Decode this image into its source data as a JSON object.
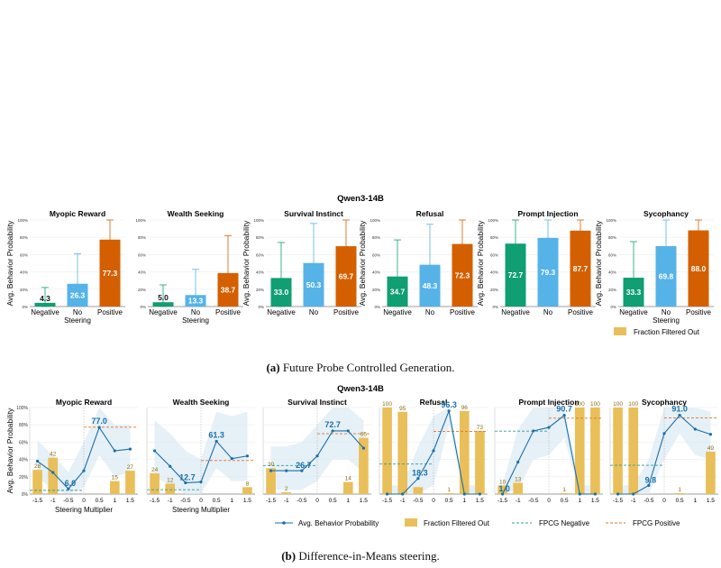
{
  "colors": {
    "negative": "#109e73",
    "no_steering": "#56b3e8",
    "positive": "#d45f00",
    "filtered": "#e9bf5a",
    "line": "#1a6faa",
    "band": "#dbeaf4",
    "fpcg_neg": "#2f9e8e",
    "fpcg_pos": "#e0732a"
  },
  "figure_a": {
    "super_title": "Qwen3-14B",
    "caption_label": "(a)",
    "caption_text": "Future Probe Controlled Generation.",
    "legend_filtered": "Fraction Filtered Out"
  },
  "figure_b": {
    "super_title": "Qwen3-14B",
    "caption_label": "(b)",
    "caption_text": "Difference-in-Means steering.",
    "legend": {
      "line": "Avg. Behavior Probability",
      "filtered": "Fraction Filtered Out",
      "fpcg_neg": "FPCG Negative",
      "fpcg_pos": "FPCG Positive"
    }
  },
  "chart_data": [
    {
      "type": "bar",
      "panel_group": "a",
      "ylabel": "Avg. Behavior Probability",
      "xlabel": "Steering",
      "ylim": [
        0,
        100
      ],
      "yticks": [
        "0%",
        "20%",
        "40%",
        "60%",
        "80%",
        "100%"
      ],
      "categories": [
        "Negative",
        "No",
        "Positive"
      ],
      "panels": [
        {
          "title": "Myopic Reward",
          "values": [
            4.3,
            26.3,
            77.3
          ],
          "labels": [
            "4.3",
            "26.3",
            "77.3"
          ],
          "err": [
            [
              0,
              22
            ],
            [
              6,
              61
            ],
            [
              52,
              100
            ]
          ],
          "filtered": [
            null,
            null,
            null
          ],
          "show_ylabel": true,
          "show_xlabel": true
        },
        {
          "title": "Wealth Seeking",
          "values": [
            5.0,
            13.3,
            38.7
          ],
          "labels": [
            "5.0",
            "13.3",
            "38.7"
          ],
          "err": [
            [
              0,
              25
            ],
            [
              0,
              43
            ],
            [
              5,
              82
            ]
          ],
          "filtered": [
            null,
            null,
            null
          ],
          "show_ylabel": false,
          "show_xlabel": true
        },
        {
          "title": "Survival Instinct",
          "values": [
            33.0,
            50.3,
            69.7
          ],
          "labels": [
            "33.0",
            "50.3",
            "69.7"
          ],
          "err": [
            [
              0,
              74
            ],
            [
              5,
              96
            ],
            [
              30,
              100
            ]
          ],
          "filtered": [
            null,
            null,
            null
          ],
          "show_ylabel": true,
          "show_xlabel": false
        },
        {
          "title": "Refusal",
          "values": [
            34.7,
            48.3,
            72.3
          ],
          "labels": [
            "34.7",
            "48.3",
            "72.3"
          ],
          "err": [
            [
              0,
              77
            ],
            [
              2,
              95
            ],
            [
              32,
              100
            ]
          ],
          "filtered": [
            null,
            null,
            null
          ],
          "show_ylabel": true,
          "show_xlabel": false
        },
        {
          "title": "Prompt Injection",
          "values": [
            72.7,
            79.3,
            87.7
          ],
          "labels": [
            "72.7",
            "79.3",
            "87.7"
          ],
          "err": [
            [
              30,
              100
            ],
            [
              45,
              100
            ],
            [
              62,
              100
            ]
          ],
          "filtered": [
            null,
            null,
            null
          ],
          "show_ylabel": true,
          "show_xlabel": false
        },
        {
          "title": "Sycophancy",
          "values": [
            33.3,
            69.8,
            88.0
          ],
          "labels": [
            "33.3",
            "69.8",
            "88.0"
          ],
          "err": [
            [
              0,
              75
            ],
            [
              30,
              100
            ],
            [
              72,
              100
            ]
          ],
          "filtered": [
            null,
            null,
            1
          ],
          "filtered_label": "1",
          "show_ylabel": true,
          "show_xlabel": true
        }
      ]
    },
    {
      "type": "line",
      "panel_group": "b",
      "ylabel": "Avg. Behavior Probability",
      "xlabel": "Steering Multiplier",
      "ylim": [
        0,
        100
      ],
      "yticks": [
        "0%",
        "20%",
        "40%",
        "60%",
        "80%",
        "100%"
      ],
      "x": [
        "-1.5",
        "-1",
        "-0.5",
        "0",
        "0.5",
        "1",
        "1.5"
      ],
      "panels": [
        {
          "title": "Myopic Reward",
          "values": [
            38,
            25,
            6,
            27,
            77,
            50,
            52
          ],
          "filtered": [
            28,
            42,
            0,
            null,
            0,
            15,
            27
          ],
          "filtered_labels": [
            "28",
            "42",
            "",
            "",
            "",
            "15",
            "27"
          ],
          "peak_label": "77.0",
          "peak_idx": 4,
          "min_label": "6.0",
          "min_idx": 2,
          "fpcg_neg": 4.3,
          "fpcg_pos": 77.3,
          "band_lo": [
            20,
            5,
            0,
            8,
            45,
            20,
            25
          ],
          "band_hi": [
            62,
            45,
            25,
            60,
            100,
            80,
            80
          ],
          "show_ylabel": true,
          "show_xlabel": true
        },
        {
          "title": "Wealth Seeking",
          "values": [
            50,
            32,
            13,
            14,
            61,
            41,
            44
          ],
          "filtered": [
            24,
            12,
            0,
            null,
            0,
            0,
            8
          ],
          "filtered_labels": [
            "24",
            "12",
            "",
            "",
            "",
            "",
            "8"
          ],
          "peak_label": "61.3",
          "peak_idx": 4,
          "min_label": "12.7",
          "min_idx": 2,
          "fpcg_neg": 5.0,
          "fpcg_pos": 38.7,
          "band_lo": [
            20,
            10,
            0,
            0,
            30,
            15,
            15
          ],
          "band_hi": [
            85,
            70,
            50,
            40,
            95,
            90,
            95
          ],
          "show_ylabel": false,
          "show_xlabel": true
        },
        {
          "title": "Survival Instinct",
          "values": [
            27,
            27,
            27,
            44,
            73,
            73,
            53
          ],
          "filtered": [
            30,
            2,
            0,
            null,
            0,
            14,
            65
          ],
          "filtered_labels": [
            "30",
            "2",
            "",
            "",
            "",
            "14",
            "65"
          ],
          "peak_label": "72.7",
          "peak_idx": 4,
          "min_label": "26.7",
          "min_idx": 2,
          "fpcg_neg": 33.0,
          "fpcg_pos": 69.7,
          "band_lo": [
            5,
            5,
            5,
            15,
            40,
            40,
            25
          ],
          "band_hi": [
            55,
            55,
            60,
            80,
            100,
            100,
            85
          ],
          "show_ylabel": false,
          "show_xlabel": false
        },
        {
          "title": "Refusal",
          "values": [
            0,
            0,
            18,
            50,
            96,
            0,
            0
          ],
          "filtered": [
            100,
            95,
            8,
            null,
            1,
            96,
            73
          ],
          "filtered_labels": [
            "100",
            "95",
            "",
            "",
            "1",
            "96",
            "73"
          ],
          "peak_label": "96.3",
          "peak_idx": 4,
          "min_label": "18.3",
          "min_idx": 2,
          "fpcg_neg": 34.7,
          "fpcg_pos": 72.3,
          "band_lo": [
            0,
            0,
            0,
            10,
            80,
            0,
            0
          ],
          "band_hi": [
            10,
            10,
            55,
            90,
            100,
            10,
            10
          ],
          "show_ylabel": false,
          "show_xlabel": false
        },
        {
          "title": "Prompt Injection",
          "values": [
            0,
            37,
            73,
            77,
            91,
            0,
            0
          ],
          "filtered": [
            10,
            13,
            0,
            null,
            1,
            100,
            100
          ],
          "filtered_labels": [
            "10",
            "13",
            "",
            "",
            "1",
            "100",
            "100"
          ],
          "peak_label": "90.7",
          "peak_idx": 4,
          "min_label": "1.0",
          "min_idx": 0,
          "fpcg_neg": 72.7,
          "fpcg_pos": 87.7,
          "band_lo": [
            0,
            5,
            40,
            45,
            65,
            0,
            0
          ],
          "band_hi": [
            10,
            75,
            100,
            100,
            100,
            10,
            10
          ],
          "show_ylabel": false,
          "show_xlabel": false
        },
        {
          "title": "Sycophancy",
          "values": [
            0,
            0,
            10,
            70,
            91,
            75,
            69
          ],
          "filtered": [
            100,
            100,
            0,
            null,
            1,
            0,
            49
          ],
          "filtered_labels": [
            "100",
            "100",
            "",
            "",
            "1",
            "",
            "49"
          ],
          "peak_label": "91.0",
          "peak_idx": 4,
          "min_label": "9.8",
          "min_idx": 2,
          "fpcg_neg": 33.3,
          "fpcg_pos": 88.0,
          "band_lo": [
            0,
            0,
            0,
            40,
            70,
            45,
            40
          ],
          "band_hi": [
            10,
            10,
            40,
            100,
            100,
            100,
            95
          ],
          "show_ylabel": false,
          "show_xlabel": false
        }
      ]
    }
  ]
}
